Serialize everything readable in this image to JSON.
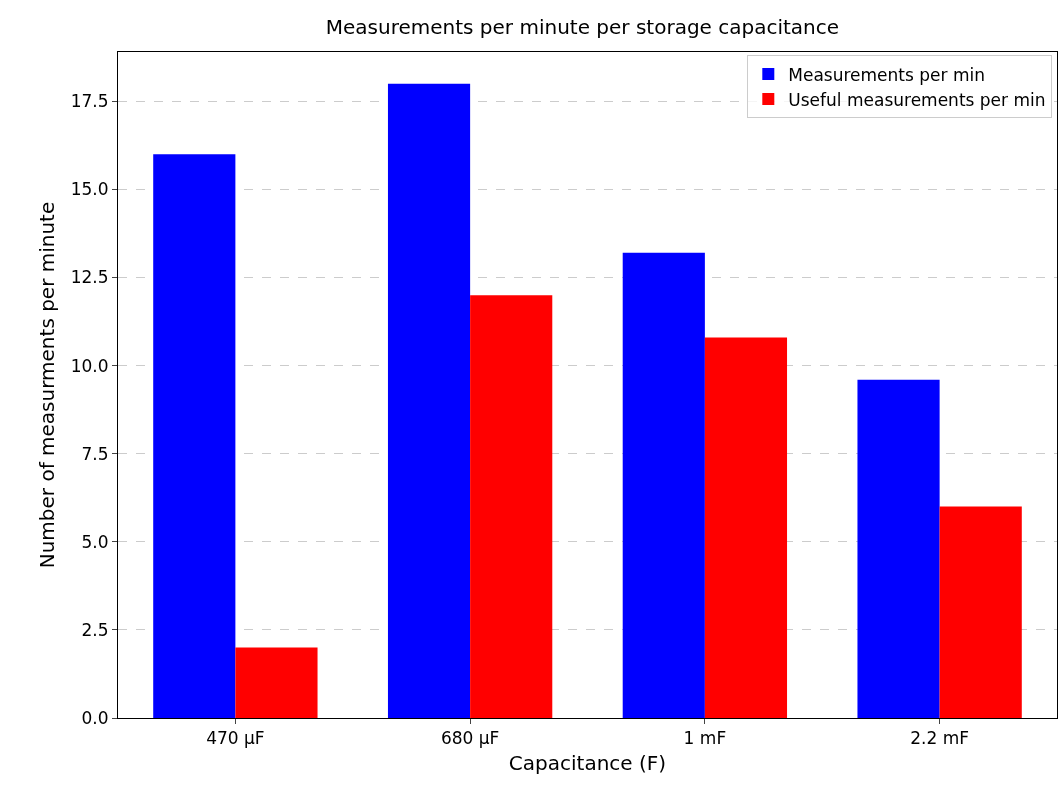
{
  "chart_data": {
    "type": "bar",
    "title": "Measurements per minute per storage capacitance",
    "xlabel": "Capacitance (F)",
    "ylabel": "Number of measurments per minute",
    "categories": [
      "470 µF",
      "680 µF",
      "1 mF",
      "2.2 mF"
    ],
    "series": [
      {
        "name": "Measurements per min",
        "color": "#0000ff",
        "values": [
          16,
          18,
          13.2,
          9.6
        ]
      },
      {
        "name": "Useful measurements per min",
        "color": "#ff0000",
        "values": [
          2,
          12,
          10.8,
          6
        ]
      }
    ],
    "ylim": [
      0,
      18.9
    ],
    "yticks": [
      {
        "value": 0,
        "label": "0.0"
      },
      2.5,
      {
        "value": 5,
        "label": "5.0"
      },
      7.5,
      {
        "value": 10,
        "label": "10.0"
      },
      12.5,
      {
        "value": 15,
        "label": "15.0"
      },
      17.5
    ],
    "grid": "y",
    "legend": "top right"
  }
}
